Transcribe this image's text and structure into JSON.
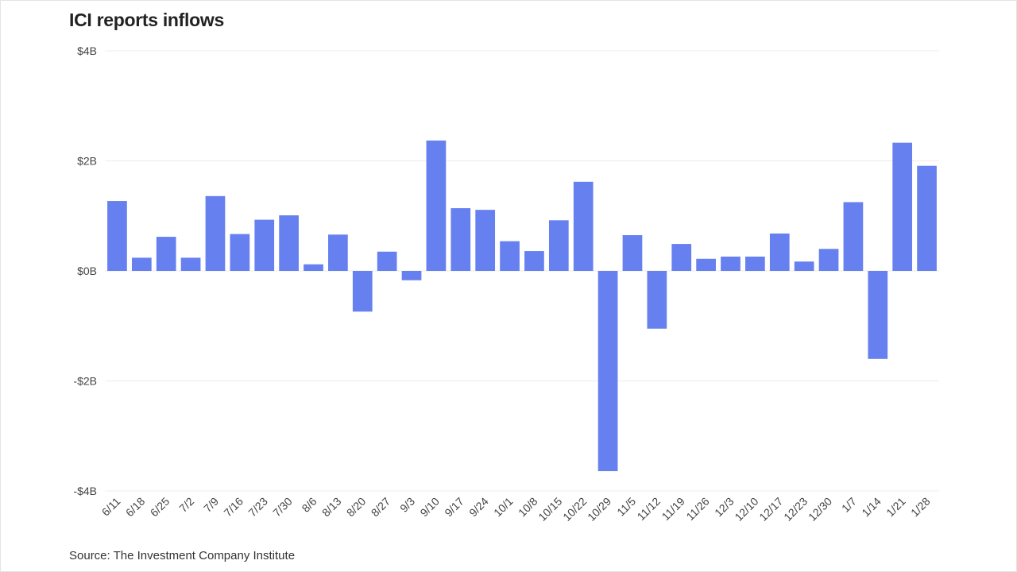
{
  "chart_data": {
    "type": "bar",
    "title": "ICI reports inflows",
    "source": "Source: The Investment Company Institute",
    "xlabel": "",
    "ylabel": "",
    "ylim": [
      -4,
      4
    ],
    "y_ticks": [
      4,
      2,
      0,
      -2,
      -4
    ],
    "y_tick_labels": [
      "$4B",
      "$2B",
      "$0B",
      "-$2B",
      "-$4B"
    ],
    "grid": true,
    "bar_color": "#6680f0",
    "categories": [
      "6/11",
      "6/18",
      "6/25",
      "7/2",
      "7/9",
      "7/16",
      "7/23",
      "7/30",
      "8/6",
      "8/13",
      "8/20",
      "8/27",
      "9/3",
      "9/10",
      "9/17",
      "9/24",
      "10/1",
      "10/8",
      "10/15",
      "10/22",
      "10/29",
      "11/5",
      "11/12",
      "11/19",
      "11/26",
      "12/3",
      "12/10",
      "12/17",
      "12/23",
      "12/30",
      "1/7",
      "1/14",
      "1/21",
      "1/28"
    ],
    "values": [
      1.27,
      0.24,
      0.62,
      0.24,
      1.36,
      0.67,
      0.93,
      1.01,
      0.12,
      0.66,
      -0.74,
      0.35,
      -0.17,
      2.37,
      1.14,
      1.11,
      0.54,
      0.36,
      0.92,
      1.62,
      -3.64,
      0.65,
      -1.05,
      0.49,
      0.22,
      0.26,
      0.26,
      0.68,
      0.17,
      0.4,
      1.25,
      -1.6,
      2.33,
      1.91
    ]
  }
}
